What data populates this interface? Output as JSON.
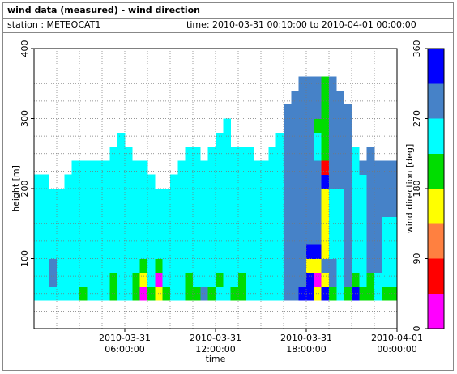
{
  "header": {
    "title": "wind data (measured) - wind direction",
    "station": "station : METEOCAT1",
    "time": "time: 2010-03-31 00:10:00 to 2010-04-01 00:00:00"
  },
  "chart_data": {
    "type": "heatmap",
    "xlabel": "time",
    "ylabel": "height [m]",
    "colorbar_label": "wind direction [deg]",
    "xlim": [
      0,
      24
    ],
    "ylim": [
      0,
      400
    ],
    "xticks": [
      {
        "value": 6,
        "label": "2010-03-31 06:00:00"
      },
      {
        "value": 12,
        "label": "2010-03-31 12:00:00"
      },
      {
        "value": 18,
        "label": "2010-03-31 18:00:00"
      },
      {
        "value": 24,
        "label": "2010-04-01 00:00:00"
      }
    ],
    "yticks": [
      100,
      200,
      300,
      400
    ],
    "xgrid": [
      1.5,
      3,
      4.5,
      6,
      7.5,
      9,
      10.5,
      12,
      13.5,
      15,
      16.5,
      18,
      19.5,
      21,
      22.5
    ],
    "ygrid": [
      25,
      50,
      75,
      100,
      125,
      150,
      175,
      200,
      225,
      250,
      275,
      300,
      325,
      350,
      375
    ],
    "grid": true,
    "clim": [
      0,
      360
    ],
    "cticks": [
      0,
      90,
      180,
      270,
      360
    ],
    "colorscale": [
      "#ff00ff",
      "#ff0000",
      "#ff8040",
      "#ffff00",
      "#00dd00",
      "#00ffff",
      "#4682c8",
      "#0000ff"
    ],
    "x": [
      0,
      0.5,
      1,
      1.5,
      2,
      2.5,
      3,
      3.5,
      4,
      4.5,
      5,
      5.5,
      6,
      6.5,
      7,
      7.5,
      8,
      8.5,
      9,
      9.5,
      10,
      10.5,
      11,
      11.5,
      12,
      12.5,
      13,
      13.5,
      14,
      14.5,
      15,
      15.5,
      16,
      16.5,
      17,
      17.5,
      18,
      18.5,
      19,
      19.5,
      20,
      20.5,
      21,
      21.5,
      22,
      22.5,
      23,
      23.5
    ],
    "y": [
      40,
      60,
      80,
      100,
      120,
      140,
      160,
      180,
      200,
      220,
      240,
      260,
      280,
      300,
      320,
      340
    ],
    "z": [
      [
        250,
        250,
        250,
        250,
        250,
        250,
        250,
        250,
        250,
        null,
        null,
        null,
        null,
        null,
        null,
        null
      ],
      [
        250,
        250,
        250,
        250,
        250,
        250,
        250,
        250,
        250,
        null,
        null,
        null,
        null,
        null,
        null,
        null
      ],
      [
        250,
        290,
        290,
        250,
        250,
        250,
        250,
        250,
        null,
        null,
        null,
        null,
        null,
        null,
        null,
        null
      ],
      [
        250,
        250,
        250,
        250,
        250,
        250,
        250,
        250,
        null,
        null,
        null,
        null,
        null,
        null,
        null,
        null
      ],
      [
        250,
        250,
        250,
        250,
        250,
        250,
        250,
        250,
        250,
        null,
        null,
        null,
        null,
        null,
        null,
        null
      ],
      [
        250,
        250,
        250,
        250,
        250,
        250,
        250,
        250,
        250,
        250,
        null,
        null,
        null,
        null,
        null,
        null
      ],
      [
        200,
        250,
        250,
        250,
        250,
        250,
        250,
        250,
        250,
        250,
        null,
        null,
        null,
        null,
        null,
        null
      ],
      [
        250,
        250,
        250,
        250,
        250,
        250,
        250,
        250,
        250,
        250,
        null,
        null,
        null,
        null,
        null,
        null
      ],
      [
        250,
        250,
        250,
        250,
        250,
        250,
        250,
        250,
        250,
        250,
        null,
        null,
        null,
        null,
        null,
        null
      ],
      [
        250,
        250,
        250,
        250,
        250,
        250,
        250,
        250,
        250,
        250,
        null,
        null,
        null,
        null,
        null,
        null
      ],
      [
        200,
        200,
        250,
        250,
        250,
        250,
        250,
        250,
        250,
        250,
        250,
        null,
        null,
        null,
        null,
        null
      ],
      [
        250,
        250,
        250,
        250,
        250,
        250,
        250,
        250,
        250,
        250,
        250,
        250,
        null,
        null,
        null,
        null
      ],
      [
        250,
        250,
        250,
        250,
        250,
        250,
        250,
        250,
        250,
        250,
        250,
        null,
        null,
        null,
        null,
        null
      ],
      [
        200,
        200,
        250,
        250,
        250,
        250,
        250,
        250,
        250,
        250,
        null,
        null,
        null,
        null,
        null,
        null
      ],
      [
        20,
        160,
        200,
        250,
        250,
        250,
        250,
        250,
        250,
        250,
        null,
        null,
        null,
        null,
        null,
        null
      ],
      [
        200,
        250,
        250,
        250,
        250,
        250,
        250,
        250,
        250,
        null,
        null,
        null,
        null,
        null,
        null,
        null
      ],
      [
        160,
        20,
        200,
        250,
        250,
        250,
        250,
        250,
        null,
        null,
        null,
        null,
        null,
        null,
        null,
        null
      ],
      [
        200,
        250,
        250,
        250,
        250,
        250,
        250,
        250,
        null,
        null,
        null,
        null,
        null,
        null,
        null,
        null
      ],
      [
        250,
        250,
        250,
        250,
        250,
        250,
        250,
        250,
        250,
        null,
        null,
        null,
        null,
        null,
        null,
        null
      ],
      [
        250,
        250,
        250,
        250,
        250,
        250,
        250,
        250,
        250,
        250,
        null,
        null,
        null,
        null,
        null,
        null
      ],
      [
        200,
        200,
        250,
        250,
        250,
        250,
        250,
        250,
        250,
        250,
        250,
        null,
        null,
        null,
        null,
        null
      ],
      [
        200,
        250,
        250,
        250,
        250,
        250,
        250,
        250,
        250,
        250,
        250,
        null,
        null,
        null,
        null,
        null
      ],
      [
        290,
        250,
        250,
        250,
        250,
        250,
        250,
        250,
        250,
        250,
        null,
        null,
        null,
        null,
        null,
        null
      ],
      [
        200,
        250,
        250,
        250,
        250,
        250,
        250,
        250,
        250,
        250,
        250,
        null,
        null,
        null,
        null,
        null
      ],
      [
        250,
        200,
        250,
        250,
        250,
        250,
        250,
        250,
        250,
        250,
        250,
        250,
        null,
        null,
        null,
        null
      ],
      [
        250,
        250,
        250,
        250,
        250,
        250,
        250,
        250,
        250,
        250,
        250,
        250,
        250,
        null,
        null,
        null
      ],
      [
        200,
        250,
        250,
        250,
        250,
        250,
        250,
        250,
        250,
        250,
        250,
        null,
        null,
        null,
        null,
        null
      ],
      [
        200,
        200,
        250,
        250,
        250,
        250,
        250,
        250,
        250,
        250,
        250,
        null,
        null,
        null,
        null,
        null
      ],
      [
        250,
        250,
        250,
        250,
        250,
        250,
        250,
        250,
        250,
        250,
        250,
        null,
        null,
        null,
        null,
        null
      ],
      [
        250,
        250,
        250,
        250,
        250,
        250,
        250,
        250,
        250,
        250,
        null,
        null,
        null,
        null,
        null,
        null
      ],
      [
        250,
        250,
        250,
        250,
        250,
        250,
        250,
        250,
        250,
        250,
        null,
        null,
        null,
        null,
        null,
        null
      ],
      [
        250,
        250,
        250,
        250,
        250,
        250,
        250,
        250,
        250,
        250,
        250,
        null,
        null,
        null,
        null,
        null
      ],
      [
        250,
        250,
        250,
        250,
        250,
        250,
        250,
        250,
        250,
        250,
        250,
        250,
        null,
        null,
        null,
        null
      ],
      [
        290,
        290,
        290,
        290,
        290,
        290,
        290,
        290,
        290,
        290,
        290,
        290,
        290,
        290,
        null,
        null
      ],
      [
        290,
        290,
        290,
        290,
        290,
        290,
        290,
        290,
        290,
        290,
        290,
        290,
        290,
        290,
        290,
        null
      ],
      [
        330,
        290,
        290,
        290,
        290,
        290,
        290,
        290,
        290,
        290,
        290,
        290,
        290,
        290,
        290,
        290
      ],
      [
        330,
        330,
        160,
        330,
        290,
        290,
        290,
        290,
        290,
        290,
        290,
        290,
        290,
        290,
        290,
        290
      ],
      [
        160,
        20,
        160,
        330,
        290,
        290,
        290,
        290,
        290,
        290,
        250,
        250,
        200,
        290,
        290,
        290
      ],
      [
        330,
        160,
        290,
        160,
        160,
        160,
        160,
        160,
        330,
        70,
        200,
        200,
        200,
        200,
        200,
        200
      ],
      [
        200,
        290,
        290,
        250,
        250,
        250,
        250,
        250,
        290,
        290,
        290,
        290,
        290,
        290,
        290,
        290
      ],
      [
        250,
        250,
        250,
        250,
        250,
        250,
        250,
        250,
        290,
        290,
        290,
        290,
        290,
        290,
        290,
        null
      ],
      [
        200,
        290,
        290,
        290,
        290,
        290,
        290,
        290,
        290,
        290,
        290,
        290,
        290,
        290,
        null,
        null
      ],
      [
        330,
        200,
        250,
        250,
        250,
        250,
        250,
        250,
        250,
        250,
        250,
        null,
        null,
        null,
        null,
        null
      ],
      [
        200,
        250,
        250,
        250,
        250,
        250,
        250,
        250,
        250,
        290,
        null,
        null,
        null,
        null,
        null,
        null
      ],
      [
        200,
        200,
        290,
        290,
        290,
        290,
        290,
        290,
        290,
        290,
        290,
        null,
        null,
        null,
        null,
        null
      ],
      [
        250,
        250,
        290,
        290,
        290,
        290,
        290,
        290,
        290,
        290,
        null,
        null,
        null,
        null,
        null,
        null
      ],
      [
        200,
        250,
        250,
        250,
        250,
        250,
        290,
        290,
        290,
        290,
        null,
        null,
        null,
        null,
        null,
        null
      ],
      [
        200,
        250,
        250,
        250,
        250,
        250,
        290,
        290,
        290,
        290,
        null,
        null,
        null,
        null,
        null,
        null
      ]
    ]
  }
}
